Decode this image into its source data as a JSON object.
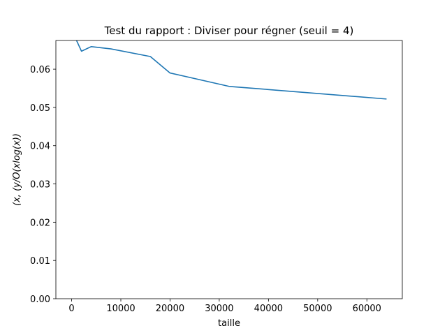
{
  "chart_data": {
    "type": "line",
    "title": "Test du rapport : Diviser pour régner (seuil = 4)",
    "xlabel": "taille",
    "ylabel": "(x, (y/O(xlog(x))",
    "xlim": [
      -3200,
      67200
    ],
    "ylim": [
      0.0,
      0.0675
    ],
    "xticks": [
      0,
      10000,
      20000,
      30000,
      40000,
      50000,
      60000
    ],
    "yticks": [
      0.0,
      0.01,
      0.02,
      0.03,
      0.04,
      0.05,
      0.06
    ],
    "xtick_labels": [
      "0",
      "10000",
      "20000",
      "30000",
      "40000",
      "50000",
      "60000"
    ],
    "ytick_labels": [
      "0.00",
      "0.01",
      "0.02",
      "0.03",
      "0.04",
      "0.05",
      "0.06"
    ],
    "grid": false,
    "series": [
      {
        "color": "#1f77b4",
        "x": [
          500,
          1000,
          2000,
          4000,
          8000,
          16000,
          20000,
          32000,
          64000
        ],
        "y": [
          0.075,
          0.0675,
          0.0647,
          0.0659,
          0.0653,
          0.0633,
          0.059,
          0.0555,
          0.0522
        ]
      }
    ]
  }
}
